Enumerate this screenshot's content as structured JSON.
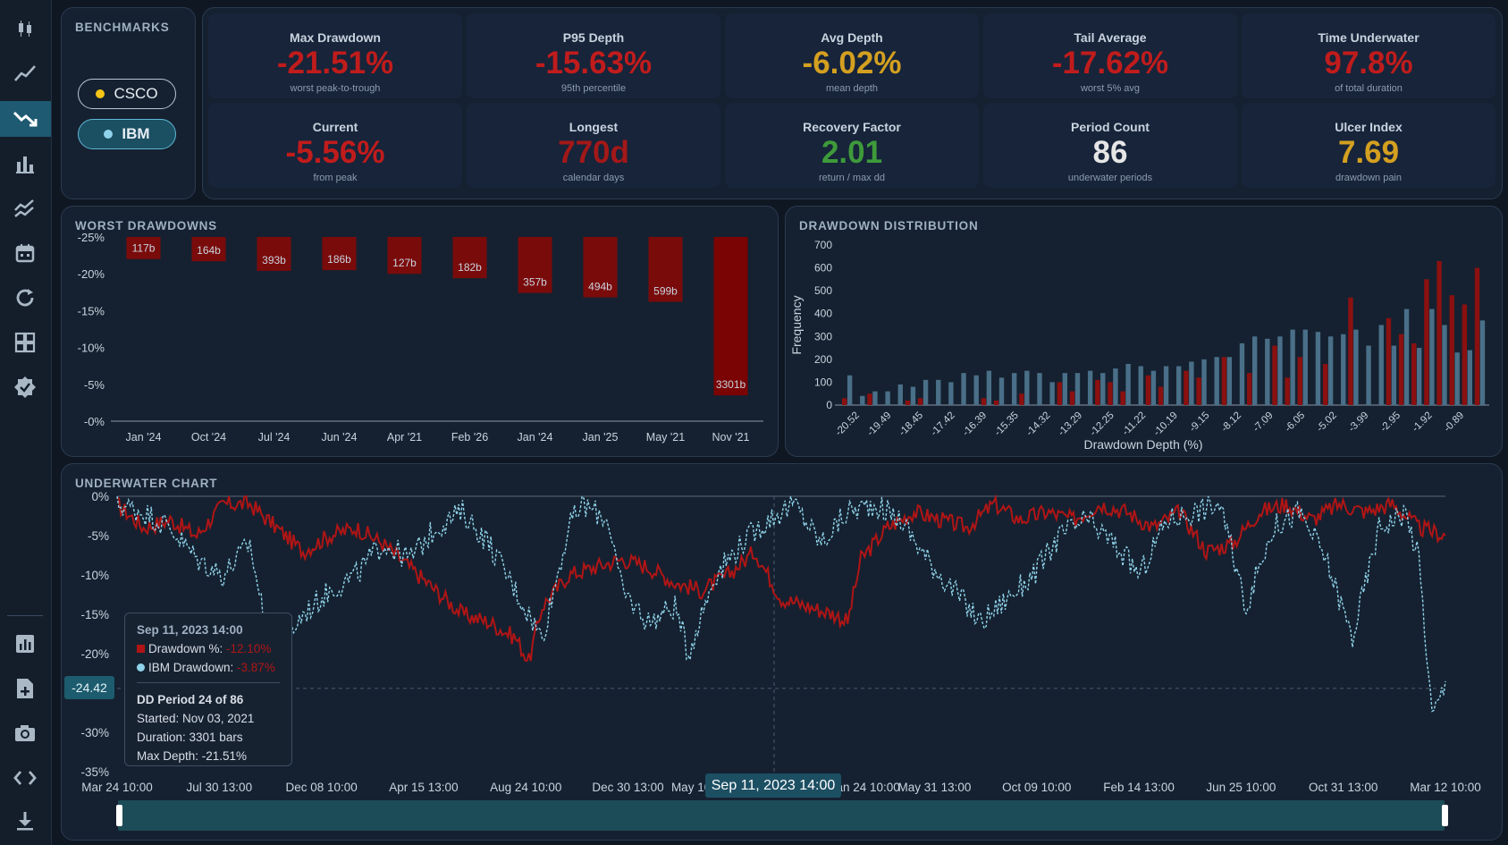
{
  "sidebar": {
    "icons": [
      "candlestick-icon",
      "line-chart-icon",
      "drawdown-icon",
      "bar-chart-icon",
      "indicators-icon",
      "calendar-icon",
      "refresh-icon",
      "grid-icon",
      "verified-icon",
      "report-icon",
      "add-file-icon",
      "camera-icon",
      "code-icon",
      "download-icon"
    ],
    "active": "drawdown-icon",
    "colors": {
      "rail_bg": "#141e2b",
      "active_bg": "#1f5a73",
      "icon": "#aab8c6"
    }
  },
  "benchmarks": {
    "title": "BENCHMARKS",
    "items": [
      {
        "label": "CSCO",
        "color": "#f5c518",
        "selected": false
      },
      {
        "label": "IBM",
        "color": "#8fd3ea",
        "selected": true
      }
    ]
  },
  "metrics": [
    {
      "label": "Max Drawdown",
      "value": "-21.51%",
      "sub": "worst peak-to-trough",
      "color": "#c01c1c"
    },
    {
      "label": "P95 Depth",
      "value": "-15.63%",
      "sub": "95th percentile",
      "color": "#c01c1c"
    },
    {
      "label": "Avg Depth",
      "value": "-6.02%",
      "sub": "mean depth",
      "color": "#d4a020"
    },
    {
      "label": "Tail Average",
      "value": "-17.62%",
      "sub": "worst 5% avg",
      "color": "#c01c1c"
    },
    {
      "label": "Time Underwater",
      "value": "97.8%",
      "sub": "of total duration",
      "color": "#c01c1c"
    },
    {
      "label": "Current",
      "value": "-5.56%",
      "sub": "from peak",
      "color": "#c01c1c"
    },
    {
      "label": "Longest",
      "value": "770d",
      "sub": "calendar days",
      "color": "#a31818"
    },
    {
      "label": "Recovery Factor",
      "value": "2.01",
      "sub": "return / max dd",
      "color": "#3e9a3a"
    },
    {
      "label": "Period Count",
      "value": "86",
      "sub": "underwater periods",
      "color": "#e6e6e6"
    },
    {
      "label": "Ulcer Index",
      "value": "7.69",
      "sub": "drawdown pain",
      "color": "#d4a020"
    }
  ],
  "worst_drawdowns": {
    "title": "WORST DRAWDOWNS",
    "chart_data": {
      "type": "bar",
      "categories": [
        "Jan '24",
        "Oct '24",
        "Jul '24",
        "Jun '24",
        "Apr '21",
        "Feb '26",
        "Jan '24",
        "Jan '25",
        "May '21",
        "Nov '21"
      ],
      "values": [
        -3.0,
        -3.3,
        -4.6,
        -4.5,
        -5.0,
        -5.6,
        -7.6,
        -8.2,
        -8.8,
        -21.5
      ],
      "data_labels": [
        "117b",
        "164b",
        "393b",
        "186b",
        "127b",
        "182b",
        "357b",
        "494b",
        "599b",
        "3301b"
      ],
      "yticks": [
        "-25%",
        "-20%",
        "-15%",
        "-10%",
        "-5%",
        "-0%"
      ],
      "ylim": [
        -25,
        0
      ],
      "color": "#7a0b0b"
    }
  },
  "distribution": {
    "title": "DRAWDOWN DISTRIBUTION",
    "chart_data": {
      "type": "bar",
      "xlabel": "Drawdown Depth (%)",
      "ylabel": "Frequency",
      "ylim": [
        0,
        700
      ],
      "yticks": [
        "0",
        "100",
        "200",
        "300",
        "400",
        "500",
        "600",
        "700"
      ],
      "xticks": [
        "-20.52",
        "-19.49",
        "-18.45",
        "-17.42",
        "-16.39",
        "-15.35",
        "-14.32",
        "-13.29",
        "-12.25",
        "-11.22",
        "-10.19",
        "-9.15",
        "-8.12",
        "-7.09",
        "-6.05",
        "-5.02",
        "-3.99",
        "-2.95",
        "-1.92",
        "-0.89"
      ],
      "series": [
        {
          "values": [
            30,
            0,
            50,
            0,
            0,
            20,
            30,
            0,
            0,
            0,
            0,
            30,
            20,
            0,
            50,
            0,
            0,
            100,
            60,
            0,
            110,
            100,
            60,
            0,
            130,
            80,
            0,
            150,
            120,
            0,
            210,
            0,
            140,
            0,
            260,
            120,
            210,
            0,
            180,
            0,
            470,
            0,
            0,
            380,
            310,
            270,
            550,
            630,
            480,
            440,
            600
          ],
          "color": "#8b1010"
        },
        {
          "values": [
            130,
            40,
            60,
            60,
            90,
            80,
            110,
            110,
            100,
            140,
            130,
            150,
            120,
            140,
            150,
            140,
            100,
            140,
            140,
            150,
            140,
            160,
            180,
            170,
            150,
            170,
            170,
            190,
            200,
            210,
            210,
            270,
            300,
            290,
            300,
            330,
            330,
            320,
            300,
            310,
            330,
            260,
            350,
            260,
            420,
            250,
            420,
            350,
            230,
            240,
            370
          ],
          "color": "#4a6f88"
        }
      ]
    }
  },
  "underwater": {
    "title": "UNDERWATER CHART",
    "chart_data": {
      "type": "line",
      "yticks": [
        "0%",
        "-5%",
        "-10%",
        "-15%",
        "-20%",
        "-24.42",
        "-30%",
        "-35%"
      ],
      "ylim": [
        -35,
        0
      ],
      "xticks": [
        "Mar 24 10:00",
        "Jul 30 13:00",
        "Dec 08 10:00",
        "Apr 15 13:00",
        "Aug 24 10:00",
        "Dec 30 13:00",
        "May 10 10:00",
        "an 24 10:00",
        "May 31 13:00",
        "Oct 09 10:00",
        "Feb 14 13:00",
        "Jun 25 10:00",
        "Oct 31 13:00",
        "Mar 12 10:00"
      ],
      "series": [
        {
          "name": "Drawdown %",
          "color": "#b01515",
          "keypoints": [
            [
              0,
              -1
            ],
            [
              2,
              -4
            ],
            [
              4,
              -3
            ],
            [
              6,
              -5
            ],
            [
              8,
              -1
            ],
            [
              10,
              -1
            ],
            [
              12,
              -4
            ],
            [
              14,
              -7
            ],
            [
              16,
              -5
            ],
            [
              18,
              -4
            ],
            [
              20,
              -6
            ],
            [
              22,
              -9
            ],
            [
              24,
              -12
            ],
            [
              26,
              -15
            ],
            [
              28,
              -16
            ],
            [
              30,
              -18
            ],
            [
              31,
              -21
            ],
            [
              32,
              -14
            ],
            [
              34,
              -10
            ],
            [
              36,
              -9
            ],
            [
              38,
              -8
            ],
            [
              40,
              -9
            ],
            [
              42,
              -11
            ],
            [
              44,
              -12
            ],
            [
              46,
              -10
            ],
            [
              48,
              -7
            ],
            [
              50,
              -13
            ],
            [
              52,
              -14
            ],
            [
              54,
              -15
            ],
            [
              55,
              -16
            ],
            [
              56,
              -8
            ],
            [
              58,
              -4
            ],
            [
              60,
              -2
            ],
            [
              62,
              -3
            ],
            [
              64,
              -4
            ],
            [
              66,
              -1
            ],
            [
              68,
              -3
            ],
            [
              70,
              -2
            ],
            [
              72,
              -3
            ],
            [
              74,
              -1
            ],
            [
              76,
              -2
            ],
            [
              78,
              -4
            ],
            [
              80,
              -2
            ],
            [
              82,
              -7
            ],
            [
              84,
              -6
            ],
            [
              86,
              -2
            ],
            [
              88,
              -1
            ],
            [
              90,
              -3
            ],
            [
              92,
              -1
            ],
            [
              94,
              -2
            ],
            [
              96,
              -1
            ],
            [
              98,
              -4
            ],
            [
              100,
              -5
            ]
          ]
        },
        {
          "name": "IBM Drawdown",
          "color": "#8fd3ea",
          "keypoints": [
            [
              0,
              -1
            ],
            [
              2,
              -2
            ],
            [
              4,
              -4
            ],
            [
              6,
              -8
            ],
            [
              8,
              -10
            ],
            [
              10,
              -6
            ],
            [
              11,
              -15
            ],
            [
              12,
              -20
            ],
            [
              14,
              -15
            ],
            [
              16,
              -12
            ],
            [
              18,
              -10
            ],
            [
              20,
              -6
            ],
            [
              22,
              -8
            ],
            [
              24,
              -4
            ],
            [
              26,
              -2
            ],
            [
              28,
              -6
            ],
            [
              30,
              -12
            ],
            [
              32,
              -18
            ],
            [
              34,
              -4
            ],
            [
              35,
              -1
            ],
            [
              37,
              -3
            ],
            [
              38,
              -12
            ],
            [
              40,
              -16
            ],
            [
              42,
              -14
            ],
            [
              43,
              -20
            ],
            [
              45,
              -10
            ],
            [
              47,
              -6
            ],
            [
              49,
              -3
            ],
            [
              51,
              -1
            ],
            [
              53,
              -6
            ],
            [
              55,
              -2
            ],
            [
              57,
              -1
            ],
            [
              59,
              -3
            ],
            [
              61,
              -8
            ],
            [
              63,
              -12
            ],
            [
              65,
              -16
            ],
            [
              67,
              -13
            ],
            [
              69,
              -10
            ],
            [
              71,
              -5
            ],
            [
              73,
              -3
            ],
            [
              75,
              -6
            ],
            [
              77,
              -10
            ],
            [
              79,
              -3
            ],
            [
              81,
              -2
            ],
            [
              83,
              -1
            ],
            [
              85,
              -14
            ],
            [
              87,
              -4
            ],
            [
              89,
              -2
            ],
            [
              91,
              -8
            ],
            [
              93,
              -18
            ],
            [
              95,
              -4
            ],
            [
              97,
              -2
            ],
            [
              98,
              -8
            ],
            [
              99,
              -28
            ],
            [
              100,
              -24
            ]
          ]
        }
      ],
      "crosshair": {
        "x_label": "Sep 11, 2023 14:00",
        "y_label": "-24.42"
      }
    },
    "tooltip": {
      "date": "Sep 11, 2023 14:00",
      "drawdown_label": "Drawdown %:",
      "drawdown_value": "-12.10%",
      "ibm_label": "IBM Drawdown:",
      "ibm_value": "-3.87%",
      "period": "DD Period 24 of 86",
      "started": "Started: Nov 03, 2021",
      "duration": "Duration: 3301 bars",
      "max_depth": "Max Depth: -21.51%"
    }
  }
}
